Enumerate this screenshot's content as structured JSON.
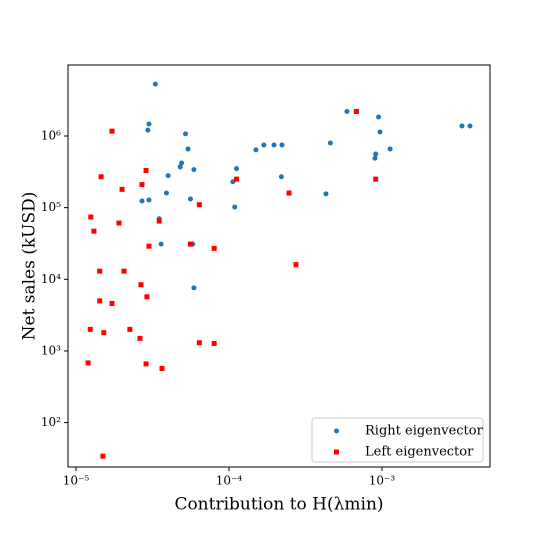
{
  "chart_data": {
    "type": "scatter",
    "xlabel": "Contribution to H(λmin)",
    "ylabel": "Net sales (kUSD)",
    "xscale": "log",
    "yscale": "log",
    "xlim": [
      8.87e-06,
      0.00508
    ],
    "ylim": [
      24,
      9800000.0
    ],
    "xticks": [
      {
        "value": 1e-05,
        "label": "10⁻⁵"
      },
      {
        "value": 0.0001,
        "label": "10⁻⁴"
      },
      {
        "value": 0.001,
        "label": "10⁻³"
      }
    ],
    "yticks": [
      {
        "value": 100,
        "label": "10²"
      },
      {
        "value": 1000,
        "label": "10³"
      },
      {
        "value": 10000,
        "label": "10⁴"
      },
      {
        "value": 100000,
        "label": "10⁵"
      },
      {
        "value": 1000000,
        "label": "10⁶"
      }
    ],
    "legend": "lower right",
    "series": [
      {
        "name": "Right eigenvector",
        "color": "#1f77b4",
        "marker": "circle",
        "x": [
          3.3e-05,
          3e-05,
          2.95e-05,
          5.2e-05,
          5.4e-05,
          4.9e-05,
          4.8e-05,
          4e-05,
          5.9e-05,
          3.9e-05,
          2.7e-05,
          3e-05,
          5.6e-05,
          3.5e-05,
          3.6e-05,
          5.8e-05,
          5.9e-05,
          0.000106,
          0.000112,
          0.000109,
          0.00015,
          0.000169,
          0.000197,
          0.000222,
          0.00022,
          0.00046,
          0.00043,
          0.00059,
          0.00091,
          0.0009,
          0.00095,
          0.00097,
          0.00113,
          0.00333,
          0.00376
        ],
        "values": [
          5300000.0,
          1470000.0,
          1210000.0,
          1070000.0,
          660000.0,
          420000.0,
          370000.0,
          280000.0,
          340000.0,
          160000.0,
          124000.0,
          128000.0,
          132000.0,
          70000.0,
          31000.0,
          31000.0,
          7600.0,
          230000.0,
          350000.0,
          102000.0,
          640000.0,
          750000.0,
          750000.0,
          750000.0,
          270000.0,
          800000.0,
          156000.0,
          2200000.0,
          560000.0,
          490000.0,
          1840000.0,
          1140000.0,
          660000.0,
          1380000.0,
          1380000.0
        ]
      },
      {
        "name": "Left eigenvector",
        "color": "#ff0000",
        "marker": "square",
        "x": [
          1.72e-05,
          1.46e-05,
          2.87e-05,
          2.7e-05,
          2e-05,
          1.25e-05,
          1.31e-05,
          1.91e-05,
          6.4e-05,
          3.5e-05,
          3e-05,
          5.6e-05,
          8e-05,
          1.43e-05,
          2.06e-05,
          2.66e-05,
          2.91e-05,
          1.43e-05,
          1.72e-05,
          1.24e-05,
          1.52e-05,
          2.25e-05,
          2.62e-05,
          6.4e-05,
          8e-05,
          2.87e-05,
          1.2e-05,
          3.65e-05,
          1.5e-05,
          0.000112,
          0.000247,
          0.000274,
          0.00068,
          0.00091
        ],
        "values": [
          1170000.0,
          270000.0,
          330000.0,
          210000.0,
          180000.0,
          74000.0,
          47000.0,
          61000.0,
          110000.0,
          65000.0,
          29000.0,
          31000.0,
          27000.0,
          13000.0,
          13000.0,
          8400.0,
          5700.0,
          5000.0,
          4600.0,
          2000.0,
          1800.0,
          2000.0,
          1500.0,
          1300.0,
          1270.0,
          660,
          680,
          570,
          34,
          250000.0,
          160000.0,
          16000.0,
          2200000.0,
          250000.0
        ]
      }
    ]
  }
}
